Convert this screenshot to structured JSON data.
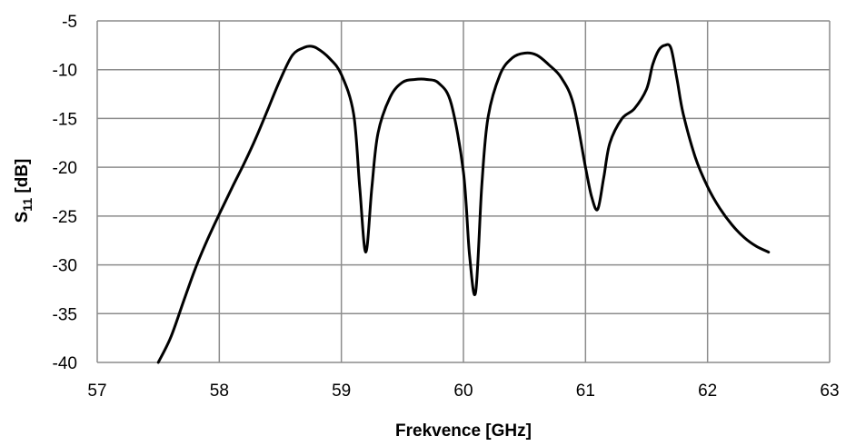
{
  "chart_data": {
    "type": "line",
    "title": "",
    "xlabel": "Frekvence [GHz]",
    "ylabel": {
      "main": "S",
      "sub": "11",
      "rest": " [dB]"
    },
    "xlim": [
      57,
      63
    ],
    "ylim": [
      -40,
      -5
    ],
    "xticks": [
      57,
      58,
      59,
      60,
      61,
      62,
      63
    ],
    "yticks": [
      -5,
      -10,
      -15,
      -20,
      -25,
      -30,
      -35,
      -40
    ],
    "grid": true,
    "legend": "none",
    "line_color": "#000000",
    "grid_color": "#8c8c8c",
    "series": [
      {
        "x": [
          57.5,
          57.6,
          57.7,
          57.8,
          57.9,
          58.0,
          58.1,
          58.2,
          58.3,
          58.4,
          58.5,
          58.6,
          58.7,
          58.75,
          58.8,
          58.9,
          59.0,
          59.1,
          59.15,
          59.2,
          59.25,
          59.3,
          59.4,
          59.5,
          59.6,
          59.7,
          59.8,
          59.9,
          60.0,
          60.05,
          60.1,
          60.15,
          60.2,
          60.3,
          60.4,
          60.5,
          60.6,
          60.7,
          60.8,
          60.9,
          61.0,
          61.05,
          61.1,
          61.15,
          61.2,
          61.3,
          61.4,
          61.5,
          61.55,
          61.6,
          61.65,
          61.7,
          61.75,
          61.8,
          61.9,
          62.0,
          62.1,
          62.2,
          62.3,
          62.4,
          62.5
        ],
        "y": [
          -40,
          -37.5,
          -34,
          -30.5,
          -27.5,
          -24.8,
          -22.2,
          -19.7,
          -17,
          -14,
          -11,
          -8.5,
          -7.7,
          -7.6,
          -7.8,
          -8.8,
          -10.5,
          -14.5,
          -22,
          -28.7,
          -22,
          -16.5,
          -12.8,
          -11.3,
          -11.0,
          -11.0,
          -11.4,
          -13.5,
          -20.5,
          -29,
          -32.8,
          -22,
          -15,
          -10.5,
          -8.8,
          -8.3,
          -8.5,
          -9.5,
          -10.8,
          -13.5,
          -20,
          -23,
          -24.3,
          -21,
          -17.5,
          -15,
          -14,
          -12,
          -9.5,
          -8.0,
          -7.5,
          -7.8,
          -11,
          -14.5,
          -19,
          -22,
          -24.2,
          -25.9,
          -27.2,
          -28.1,
          -28.7
        ]
      }
    ]
  }
}
